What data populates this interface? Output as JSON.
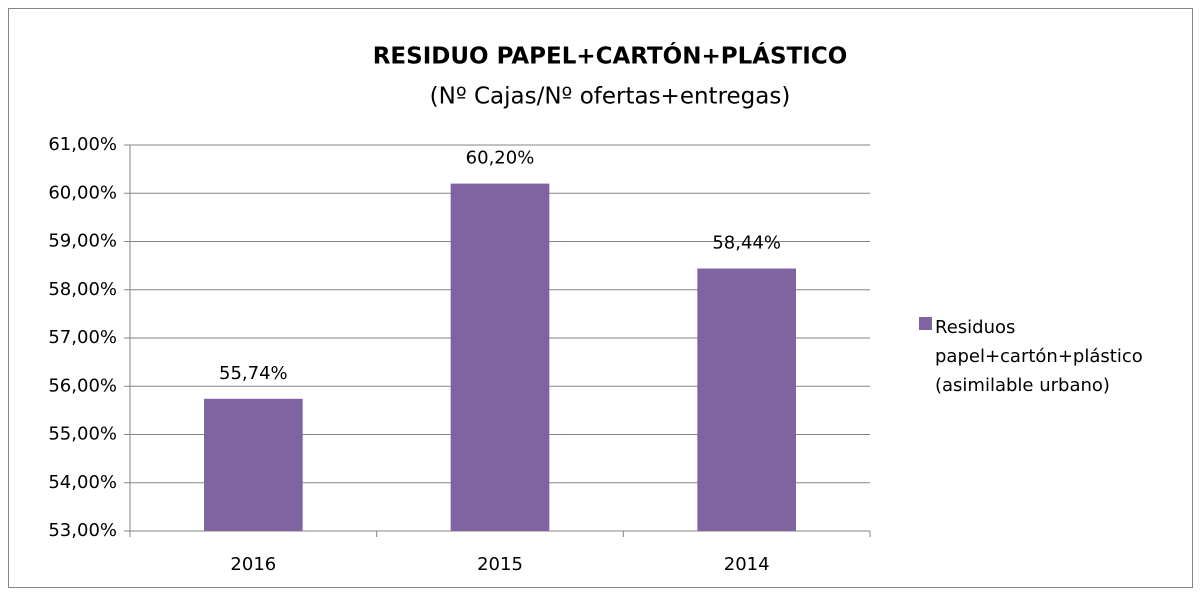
{
  "chart_data": {
    "type": "bar",
    "title": "RESIDUO PAPEL+CARTÓN+PLÁSTICO",
    "subtitle": "(Nº Cajas/Nº ofertas+entregas)",
    "categories": [
      "2016",
      "2015",
      "2014"
    ],
    "series": [
      {
        "name": "Residuos papel+cartón+plástico (asimilable urbano)",
        "color": "#8064a2",
        "values": [
          55.74,
          60.2,
          58.44
        ],
        "value_labels": [
          "55,74%",
          "60,20%",
          "58,44%"
        ]
      }
    ],
    "ylim": [
      53,
      61
    ],
    "yticks": [
      {
        "value": 53,
        "label": "53,00%"
      },
      {
        "value": 54,
        "label": "54,00%"
      },
      {
        "value": 55,
        "label": "55,00%"
      },
      {
        "value": 56,
        "label": "56,00%"
      },
      {
        "value": 57,
        "label": "57,00%"
      },
      {
        "value": 58,
        "label": "58,00%"
      },
      {
        "value": 59,
        "label": "59,00%"
      },
      {
        "value": 60,
        "label": "60,00%"
      },
      {
        "value": 61,
        "label": "61,00%"
      }
    ],
    "grid": true,
    "legend": "right"
  }
}
